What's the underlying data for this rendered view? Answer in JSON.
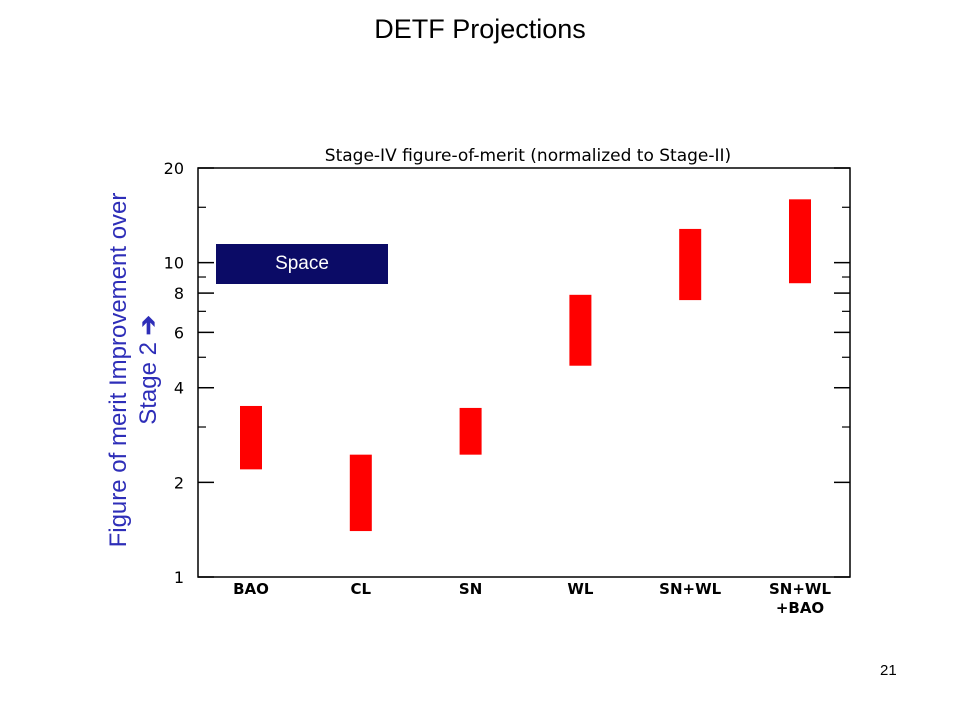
{
  "slide": {
    "title": "DETF Projections",
    "page_number": "21",
    "legend_label": "Space",
    "ylabel_line1": "Figure of merit Improvement over",
    "ylabel_line2": "Stage 2",
    "ylabel_arrow": "➔"
  },
  "colors": {
    "bar": "#ff0000",
    "legend_bg": "#0b0b66",
    "ylabel": "#2e2eb8"
  },
  "chart_data": {
    "type": "bar",
    "title": "Stage-IV figure-of-merit (normalized to Stage-II)",
    "ylabel": "Figure of merit Improvement over Stage 2",
    "yscale": "log",
    "ylim": [
      1,
      20
    ],
    "yticks": [
      1,
      2,
      4,
      6,
      8,
      10,
      20
    ],
    "categories": [
      "BAO",
      "CL",
      "SN",
      "WL",
      "SN+WL",
      "SN+WL\n+BAO"
    ],
    "series": [
      {
        "name": "Space",
        "low": [
          2.2,
          1.4,
          2.45,
          4.7,
          7.6,
          8.6
        ],
        "high": [
          3.5,
          2.45,
          3.45,
          7.9,
          12.8,
          15.9
        ]
      }
    ],
    "grid": false
  }
}
